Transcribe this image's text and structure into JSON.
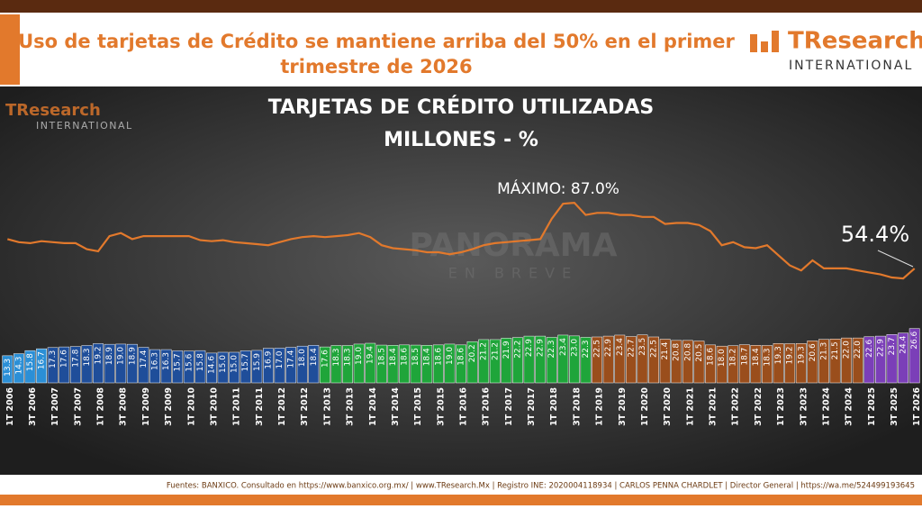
{
  "header": {
    "title": "Uso de tarjetas de Crédito se mantiene arriba del 50% en el primer trimestre de 2026",
    "logo": "TResearch",
    "logo_sub": "INTERNATIONAL"
  },
  "watermark": {
    "main": "PANORAMA",
    "sub": "EN BREVE"
  },
  "footer": "Fuentes: BANXICO. Consultado en https://www.banxico.org.mx/ | www.TResearch.Mx | Registro INE: 2020004118934 | CARLOS PENNA CHARDLET | Director General | https://wa.me/524499193645",
  "chart_data": {
    "type": "combo",
    "title": "TARJETAS DE CRÉDITO UTILIZADAS",
    "subtitle": "MILLONES - %",
    "annotations": [
      "MÁXIMO: 87.0%",
      "54.4%"
    ],
    "categories": [
      "1T 2006",
      null,
      "3T 2006",
      null,
      "1T 2007",
      null,
      "3T 2007",
      null,
      "1T 2008",
      null,
      "3T 2008",
      null,
      "1T 2009",
      null,
      "3T 2009",
      null,
      "1T 2010",
      null,
      "3T 2010",
      null,
      "1T 2011",
      null,
      "3T 2011",
      null,
      "1T 2012",
      null,
      "3T 2012",
      null,
      "1T 2013",
      null,
      "3T 2013",
      null,
      "1T 2014",
      null,
      "3T 2014",
      null,
      "1T 2015",
      null,
      "3T 2015",
      null,
      "1T 2016",
      null,
      "3T 2016",
      null,
      "1T 2017",
      null,
      "3T 2017",
      null,
      "1T 2018",
      null,
      "3T 2018",
      null,
      "1T 2019",
      null,
      "3T 2019",
      null,
      "1T 2020",
      null,
      "3T 2020",
      null,
      "1T 2021",
      null,
      "3T 2021",
      null,
      "1T 2022",
      null,
      "3T 2022",
      null,
      "1T 2023",
      null,
      "3T 2023",
      null,
      "1T 2024",
      null,
      "3T 2024",
      null,
      "1T 2025",
      null,
      "3T 2025",
      null,
      "1T 2026"
    ],
    "ylim": [
      0,
      30
    ],
    "y2lim": [
      0,
      100
    ],
    "series": [
      {
        "type": "bar",
        "values": [
          13.3,
          14.3,
          15.8,
          16.7,
          17.3,
          17.6,
          17.8,
          18.3,
          19.2,
          18.9,
          19.0,
          18.9,
          17.4,
          16.3,
          16.3,
          15.7,
          15.6,
          15.8,
          14.6,
          15.0,
          15.0,
          15.7,
          15.9,
          16.9,
          17.0,
          17.4,
          18.0,
          18.4,
          17.6,
          18.3,
          18.3,
          19.0,
          19.4,
          18.5,
          18.4,
          18.6,
          18.5,
          18.4,
          18.6,
          19.0,
          18.6,
          20.2,
          21.2,
          21.2,
          21.9,
          22.2,
          22.9,
          22.9,
          22.3,
          23.4,
          23.0,
          22.3,
          22.5,
          22.9,
          23.4,
          22.7,
          23.5,
          22.5,
          21.4,
          20.8,
          20.8,
          20.5,
          18.6,
          18.0,
          18.2,
          18.7,
          18.4,
          18.3,
          19.3,
          19.2,
          19.3,
          20.6,
          21.3,
          21.5,
          22.0,
          22.0,
          22.6,
          22.9,
          23.7,
          24.4,
          26.6
        ],
        "value_labels": [
          "13.3",
          "14.3",
          "15.8",
          "16.7",
          "17.3",
          "17.6",
          "17.8",
          "18.3",
          "19.2",
          "18.9",
          "19.0",
          "18.9",
          "17.4",
          "16.3",
          "16.3",
          "15.7",
          "15.6",
          "15.8",
          "14.6",
          "15.0",
          "15.0",
          "15.7",
          "15.9",
          "16.9",
          "17.0",
          "17.4",
          "18.0",
          "18.4",
          "17.6",
          "18.3",
          "18.3",
          "19.0",
          "19.4",
          "18.5",
          "18.4",
          "18.6",
          "18.5",
          "18.4",
          "18.6",
          "19.0",
          "18.6",
          "20.2",
          "21.2",
          "21.2",
          "21.9",
          "22.2",
          "22.9",
          "22.9",
          "22.3",
          "23.4",
          "23.0",
          "22.3",
          "22.5",
          "22.9",
          "23.4",
          "22.7",
          "23.5",
          "22.5",
          "21.4",
          "20.8",
          "20.8",
          "20.5",
          "18.6",
          "18.0",
          "18.2",
          "18.7",
          "18.4",
          "18.3",
          "19.3",
          "19.2",
          "19.3",
          "20.6",
          "21.3",
          "21.5",
          "22.0",
          "22.0",
          "22.6",
          "22.9",
          "23.7",
          "24.4",
          "26.6"
        ],
        "colors": [
          "#2b8fd6",
          "#2b8fd6",
          "#2b8fd6",
          "#2b8fd6",
          "#1f4e9a",
          "#1f4e9a",
          "#1f4e9a",
          "#1f4e9a",
          "#1f4e9a",
          "#1f4e9a",
          "#1f4e9a",
          "#1f4e9a",
          "#1f4e9a",
          "#1f4e9a",
          "#1f4e9a",
          "#1f4e9a",
          "#1f4e9a",
          "#1f4e9a",
          "#1f4e9a",
          "#1f4e9a",
          "#1f4e9a",
          "#1f4e9a",
          "#1f4e9a",
          "#1f4e9a",
          "#1f4e9a",
          "#1f4e9a",
          "#1f4e9a",
          "#1f4e9a",
          "#1fa53a",
          "#1fa53a",
          "#1fa53a",
          "#1fa53a",
          "#1fa53a",
          "#1fa53a",
          "#1fa53a",
          "#1fa53a",
          "#1fa53a",
          "#1fa53a",
          "#1fa53a",
          "#1fa53a",
          "#1fa53a",
          "#1fa53a",
          "#1fa53a",
          "#1fa53a",
          "#1fa53a",
          "#1fa53a",
          "#1fa53a",
          "#1fa53a",
          "#1fa53a",
          "#1fa53a",
          "#1fa53a",
          "#1fa53a",
          "#9a4e1c",
          "#9a4e1c",
          "#9a4e1c",
          "#9a4e1c",
          "#9a4e1c",
          "#9a4e1c",
          "#9a4e1c",
          "#9a4e1c",
          "#9a4e1c",
          "#9a4e1c",
          "#9a4e1c",
          "#9a4e1c",
          "#9a4e1c",
          "#9a4e1c",
          "#9a4e1c",
          "#9a4e1c",
          "#9a4e1c",
          "#9a4e1c",
          "#9a4e1c",
          "#9a4e1c",
          "#9a4e1c",
          "#9a4e1c",
          "#9a4e1c",
          "#9a4e1c",
          "#7b3fb8",
          "#7b3fb8",
          "#7b3fb8",
          "#7b3fb8",
          "#7b3fb8"
        ]
      },
      {
        "type": "line",
        "axis": "y2",
        "color": "#e2792c",
        "values": [
          69,
          67.5,
          67,
          68,
          67.5,
          67,
          67,
          64,
          63,
          70.5,
          72,
          69,
          70.5,
          70.5,
          70.5,
          70.5,
          70.5,
          68.5,
          68,
          68.5,
          67.5,
          67,
          66.5,
          66,
          67.5,
          69,
          70,
          70.5,
          70,
          70.5,
          71,
          72,
          70,
          66,
          64.5,
          64,
          63.5,
          62.5,
          62.5,
          61.5,
          62.5,
          64,
          66,
          67,
          67.5,
          68,
          68.5,
          69,
          79,
          86.5,
          87.0,
          81,
          82,
          82,
          81,
          81,
          80,
          80,
          76.5,
          77,
          77,
          76,
          73,
          66,
          67.5,
          65,
          64.5,
          66,
          61,
          56,
          53.5,
          58.5,
          54.5,
          54.5,
          54.5,
          53.5,
          52.5,
          51.5,
          50,
          49.5,
          54.4
        ]
      }
    ]
  }
}
